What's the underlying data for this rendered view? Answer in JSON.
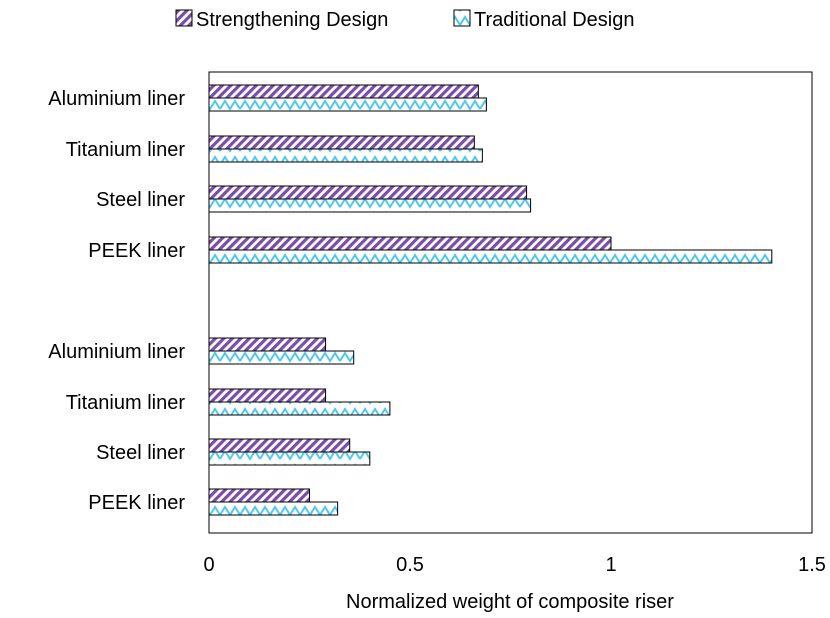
{
  "chart_data": {
    "type": "bar",
    "orientation": "horizontal",
    "xlabel": "Normalized weight of composite riser",
    "ylabel": "",
    "xlim": [
      0,
      1.5
    ],
    "xticks": [
      "0",
      "0.5",
      "1",
      "1.5"
    ],
    "grid": false,
    "legend_position": "top",
    "categories": [
      "Aluminium liner",
      "Titanium liner",
      "Steel liner",
      "PEEK liner",
      "Aluminium liner",
      "Titanium liner",
      "Steel liner",
      "PEEK liner"
    ],
    "series": [
      {
        "name": "Strengthening Design",
        "color": "#7B4DA8",
        "pattern": "diagonal-stripes",
        "values": [
          0.67,
          0.66,
          0.79,
          1.0,
          0.29,
          0.29,
          0.35,
          0.25
        ]
      },
      {
        "name": "Traditional Design",
        "color": "#4FC8EE",
        "pattern": "wave",
        "values": [
          0.69,
          0.68,
          0.8,
          1.4,
          0.36,
          0.45,
          0.4,
          0.32
        ]
      }
    ]
  }
}
